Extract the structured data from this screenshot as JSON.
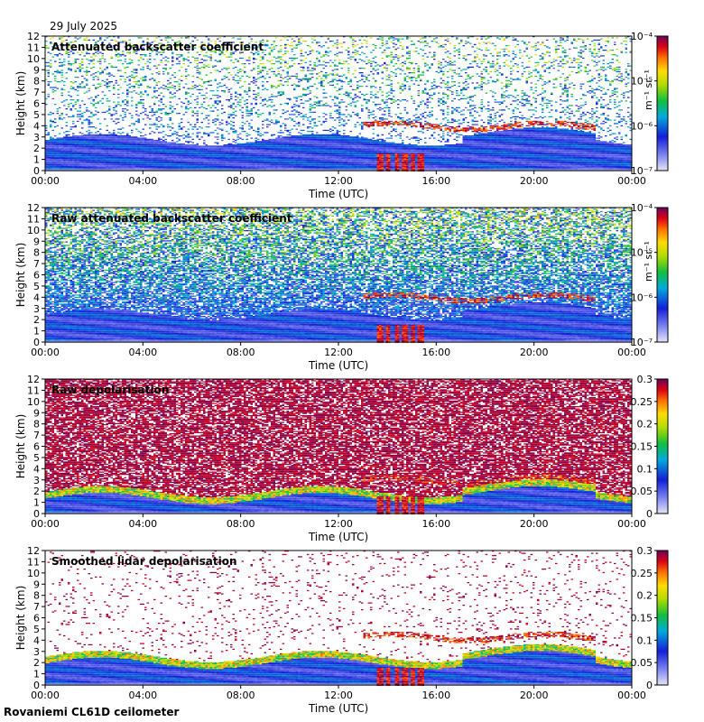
{
  "header": {
    "date": "29 July 2025"
  },
  "footer": {
    "station": "Rovaniemi CL61D ceilometer"
  },
  "chart_data": [
    {
      "type": "heatmap",
      "title": "Attenuated backscatter coefficient",
      "xlabel": "Time (UTC)",
      "ylabel": "Height (km)",
      "x_ticks": [
        "00:00",
        "04:00",
        "08:00",
        "12:00",
        "16:00",
        "20:00",
        "00:00"
      ],
      "y_ticks": [
        0,
        1,
        2,
        3,
        4,
        5,
        6,
        7,
        8,
        9,
        10,
        11,
        12
      ],
      "ylim": [
        0,
        12
      ],
      "colorbar": {
        "scale": "log",
        "unit": "m⁻¹ sr⁻¹",
        "range": [
          1e-07,
          0.0001
        ],
        "tick_labels": [
          "10⁻⁴",
          "10⁻⁵",
          "10⁻⁶",
          "10⁻⁷"
        ]
      },
      "features": {
        "boundary_layer_top_km": 2.8,
        "cloud_base_km": 4.0,
        "high_signal_window_utc": [
          "13:30",
          "15:30"
        ],
        "noise_density": 0.18
      }
    },
    {
      "type": "heatmap",
      "title": "Raw attenuated backscatter coefficient",
      "xlabel": "Time (UTC)",
      "ylabel": "Height (km)",
      "x_ticks": [
        "00:00",
        "04:00",
        "08:00",
        "12:00",
        "16:00",
        "20:00",
        "00:00"
      ],
      "y_ticks": [
        0,
        1,
        2,
        3,
        4,
        5,
        6,
        7,
        8,
        9,
        10,
        11,
        12
      ],
      "ylim": [
        0,
        12
      ],
      "colorbar": {
        "scale": "log",
        "unit": "m⁻¹ sr⁻¹",
        "range": [
          1e-07,
          0.0001
        ],
        "tick_labels": [
          "10⁻⁴",
          "10⁻⁵",
          "10⁻⁶",
          "10⁻⁷"
        ]
      },
      "features": {
        "boundary_layer_top_km": 2.5,
        "cloud_base_km": 4.0,
        "high_signal_window_utc": [
          "13:30",
          "15:30"
        ],
        "noise_density": 0.85
      }
    },
    {
      "type": "heatmap",
      "title": "Raw depolarisation",
      "xlabel": "Time (UTC)",
      "ylabel": "Height (km)",
      "x_ticks": [
        "00:00",
        "04:00",
        "08:00",
        "12:00",
        "16:00",
        "20:00",
        "00:00"
      ],
      "y_ticks": [
        0,
        1,
        2,
        3,
        4,
        5,
        6,
        7,
        8,
        9,
        10,
        11,
        12
      ],
      "ylim": [
        0,
        12
      ],
      "colorbar": {
        "scale": "linear",
        "range": [
          0,
          0.3
        ],
        "tick_labels": [
          "0.3",
          "0.25",
          "0.2",
          "0.15",
          "0.1",
          "0.05",
          "0"
        ]
      },
      "features": {
        "boundary_layer_top_km": 2.0,
        "cloud_base_km": 3.0,
        "high_signal_window_utc": [
          "13:30",
          "15:30"
        ],
        "noise_density": 0.75
      }
    },
    {
      "type": "heatmap",
      "title": "Smoothed lidar depolarisation",
      "xlabel": "Time (UTC)",
      "ylabel": "Height (km)",
      "x_ticks": [
        "00:00",
        "04:00",
        "08:00",
        "12:00",
        "16:00",
        "20:00",
        "00:00"
      ],
      "y_ticks": [
        0,
        1,
        2,
        3,
        4,
        5,
        6,
        7,
        8,
        9,
        10,
        11,
        12
      ],
      "ylim": [
        0,
        12
      ],
      "colorbar": {
        "scale": "linear",
        "range": [
          0,
          0.3
        ],
        "tick_labels": [
          "0.3",
          "0.25",
          "0.2",
          "0.15",
          "0.1",
          "0.05",
          "0"
        ]
      },
      "features": {
        "boundary_layer_top_km": 2.6,
        "cloud_base_km": 4.3,
        "high_signal_window_utc": [
          "13:30",
          "15:30"
        ],
        "noise_density": 0.06
      }
    }
  ]
}
